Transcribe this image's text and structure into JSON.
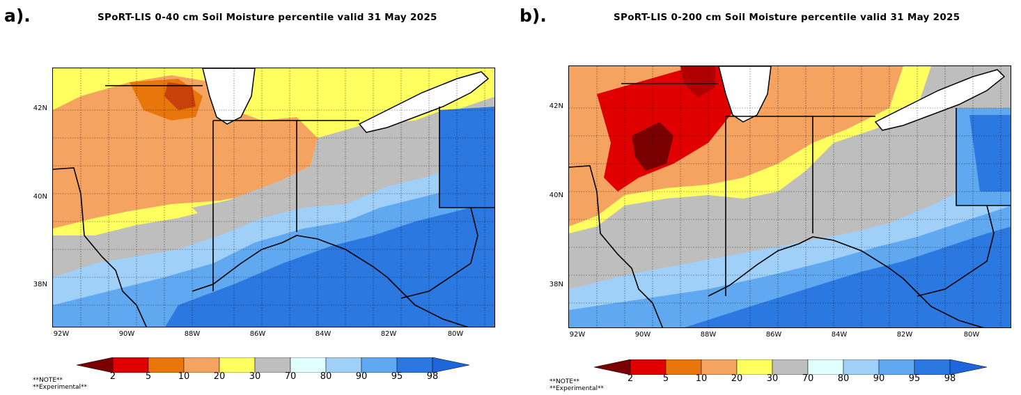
{
  "panels": [
    {
      "label": "a).",
      "title": "SPoRT-LIS 0-40 cm Soil Moisture percentile valid 31 May 2025"
    },
    {
      "label": "b).",
      "title": "SPoRT-LIS 0-200 cm Soil Moisture percentile valid 31 May 2025"
    }
  ],
  "map": {
    "lat_labels": [
      "42N",
      "40N",
      "38N"
    ],
    "lon_labels": [
      "92W",
      "90W",
      "88W",
      "86W",
      "84W",
      "82W",
      "80W"
    ]
  },
  "colorbar": {
    "tick_labels": [
      "2",
      "5",
      "10",
      "20",
      "30",
      "70",
      "80",
      "90",
      "95",
      "98"
    ],
    "colors": [
      "#7a0000",
      "#e00000",
      "#e8760a",
      "#f4a460",
      "#ffff60",
      "#bebebe",
      "#e0ffff",
      "#a0d0f8",
      "#60a8f0",
      "#2a78e0",
      "#1f66dd"
    ]
  },
  "note": {
    "line1": "**NOTE**",
    "line2": "**Experimental**"
  },
  "colors": {
    "dry_extreme": "#7a0000",
    "dry": "#e00000",
    "normal": "#bebebe",
    "wet": "#2a78e0"
  }
}
